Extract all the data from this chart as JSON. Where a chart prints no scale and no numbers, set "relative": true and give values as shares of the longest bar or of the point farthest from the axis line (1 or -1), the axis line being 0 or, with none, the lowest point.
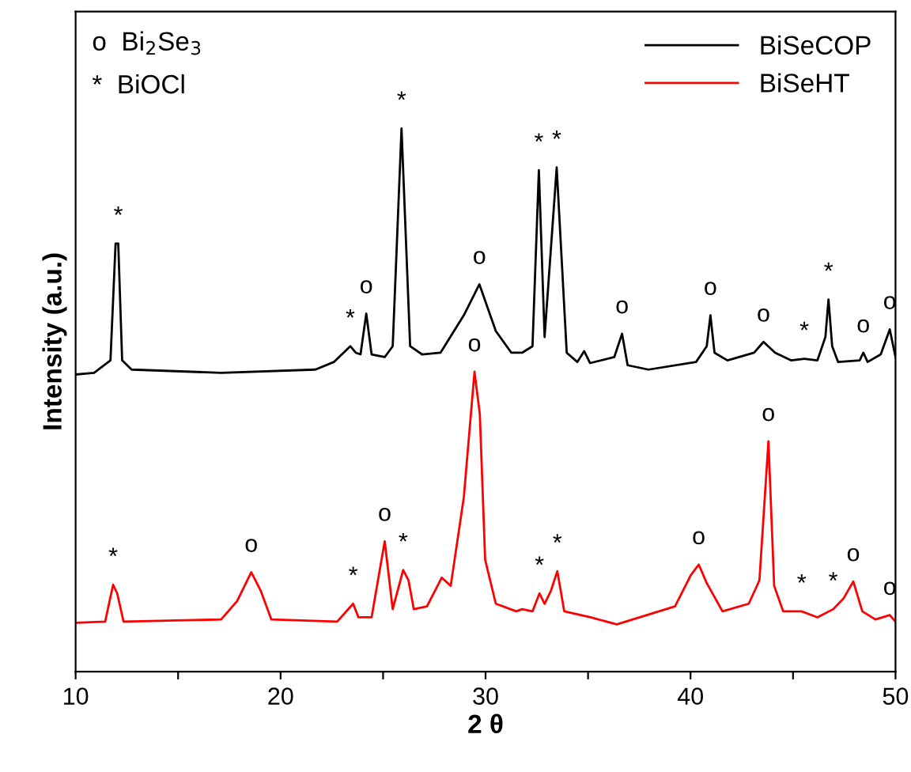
{
  "chart_data": {
    "type": "line",
    "relative": true,
    "xlabel": "2 θ",
    "ylabel": "Intensity (a.u.)",
    "xlim": [
      10,
      50
    ],
    "xticks": [
      10,
      {
        "value": 15,
        "label": null
      },
      20,
      {
        "value": 25,
        "label": null
      },
      30,
      {
        "value": 35,
        "label": null
      },
      40,
      {
        "value": 45,
        "label": null
      },
      50
    ],
    "tick_labels": "x",
    "legend": "top right",
    "grid": false,
    "marker": "none",
    "line_style": "solid",
    "series": [
      {
        "name": "BiSeCOP",
        "color": "#000000",
        "x": [
          10,
          10.9,
          11.7,
          11.95,
          12.08,
          12.27,
          12.73,
          17.1,
          21.7,
          22.6,
          23.4,
          23.67,
          23.9,
          24.18,
          24.44,
          25.08,
          25.47,
          25.9,
          26.32,
          26.9,
          27.8,
          28.94,
          29.7,
          30.5,
          31.26,
          31.78,
          32.29,
          32.6,
          32.88,
          33.47,
          33.96,
          34.48,
          34.81,
          35.1,
          36.28,
          36.66,
          36.93,
          37.95,
          40.27,
          40.79,
          40.97,
          41.17,
          41.8,
          43.1,
          43.56,
          44.13,
          44.9,
          45.55,
          46.19,
          46.58,
          46.73,
          46.91,
          47.2,
          48.25,
          48.43,
          48.64,
          49.28,
          49.72,
          50
        ],
        "values": [
          0.547,
          0.55,
          0.573,
          0.788,
          0.788,
          0.573,
          0.556,
          0.55,
          0.556,
          0.57,
          0.599,
          0.587,
          0.584,
          0.659,
          0.584,
          0.579,
          0.599,
          1.0,
          0.599,
          0.584,
          0.587,
          0.656,
          0.713,
          0.627,
          0.587,
          0.587,
          0.599,
          0.923,
          0.616,
          0.928,
          0.587,
          0.57,
          0.59,
          0.568,
          0.579,
          0.622,
          0.564,
          0.556,
          0.57,
          0.599,
          0.656,
          0.587,
          0.573,
          0.587,
          0.607,
          0.587,
          0.573,
          0.576,
          0.573,
          0.616,
          0.685,
          0.599,
          0.57,
          0.573,
          0.587,
          0.57,
          0.584,
          0.63,
          0.579
        ]
      },
      {
        "name": "BiSeHT",
        "color": "#ff0000",
        "x": [
          10,
          11.44,
          11.83,
          12.03,
          12.34,
          17.1,
          17.88,
          18.57,
          19.03,
          19.55,
          22.76,
          23.54,
          23.8,
          24.44,
          25.08,
          25.47,
          25.98,
          26.24,
          26.5,
          27.14,
          27.86,
          28.3,
          28.94,
          29.46,
          29.72,
          29.98,
          30.5,
          31.5,
          31.78,
          32.29,
          32.63,
          32.88,
          33.19,
          33.5,
          33.84,
          35.12,
          36.4,
          39.24,
          40.02,
          40.4,
          40.79,
          41.56,
          42.84,
          43.36,
          43.8,
          44.08,
          44.52,
          45.42,
          46.19,
          46.96,
          47.47,
          47.94,
          48.38,
          49.02,
          49.72,
          50
        ],
        "values": [
          0.09,
          0.092,
          0.16,
          0.144,
          0.092,
          0.096,
          0.13,
          0.183,
          0.149,
          0.096,
          0.092,
          0.125,
          0.1,
          0.1,
          0.24,
          0.115,
          0.187,
          0.168,
          0.115,
          0.12,
          0.173,
          0.158,
          0.321,
          0.552,
          0.474,
          0.206,
          0.125,
          0.111,
          0.115,
          0.111,
          0.144,
          0.125,
          0.149,
          0.185,
          0.111,
          0.1,
          0.087,
          0.12,
          0.178,
          0.197,
          0.163,
          0.111,
          0.125,
          0.168,
          0.424,
          0.158,
          0.111,
          0.111,
          0.1,
          0.115,
          0.135,
          0.166,
          0.111,
          0.096,
          0.104,
          0.092
        ]
      }
    ],
    "annotations": [
      "o  Bi$_{2}$Se$_{3}$",
      "*  BiOCl",
      {
        "text": "*",
        "x": 12.08,
        "y": 0.788
      },
      {
        "text": "*",
        "x": 23.4,
        "y": 0.599
      },
      {
        "text": "o",
        "x": 24.18,
        "y": 0.659
      },
      {
        "text": "*",
        "x": 25.9,
        "y": 1.0
      },
      {
        "text": "o",
        "x": 29.7,
        "y": 0.713
      },
      {
        "text": "*",
        "x": 32.6,
        "y": 0.923
      },
      {
        "text": "*",
        "x": 33.47,
        "y": 0.928
      },
      {
        "text": "o",
        "x": 36.66,
        "y": 0.622
      },
      {
        "text": "o",
        "x": 40.97,
        "y": 0.656
      },
      {
        "text": "o",
        "x": 43.56,
        "y": 0.607
      },
      {
        "text": "*",
        "x": 45.55,
        "y": 0.576
      },
      {
        "text": "*",
        "x": 46.73,
        "y": 0.685
      },
      {
        "text": "o",
        "x": 48.43,
        "y": 0.587
      },
      {
        "text": "o",
        "x": 49.72,
        "y": 0.63
      },
      {
        "text": "*",
        "x": 11.83,
        "y": 0.16
      },
      {
        "text": "o",
        "x": 18.57,
        "y": 0.183
      },
      {
        "text": "*",
        "x": 23.54,
        "y": 0.125
      },
      {
        "text": "o",
        "x": 25.08,
        "y": 0.24
      },
      {
        "text": "*",
        "x": 25.98,
        "y": 0.187
      },
      {
        "text": "o",
        "x": 29.46,
        "y": 0.552
      },
      {
        "text": "*",
        "x": 32.63,
        "y": 0.144
      },
      {
        "text": "*",
        "x": 33.5,
        "y": 0.185
      },
      {
        "text": "o",
        "x": 40.4,
        "y": 0.197
      },
      {
        "text": "o",
        "x": 43.8,
        "y": 0.424
      },
      {
        "text": "*",
        "x": 45.42,
        "y": 0.111
      },
      {
        "text": "*",
        "x": 46.96,
        "y": 0.115
      },
      {
        "text": "o",
        "x": 47.94,
        "y": 0.166
      },
      {
        "text": "o",
        "x": 49.72,
        "y": 0.104
      }
    ]
  }
}
